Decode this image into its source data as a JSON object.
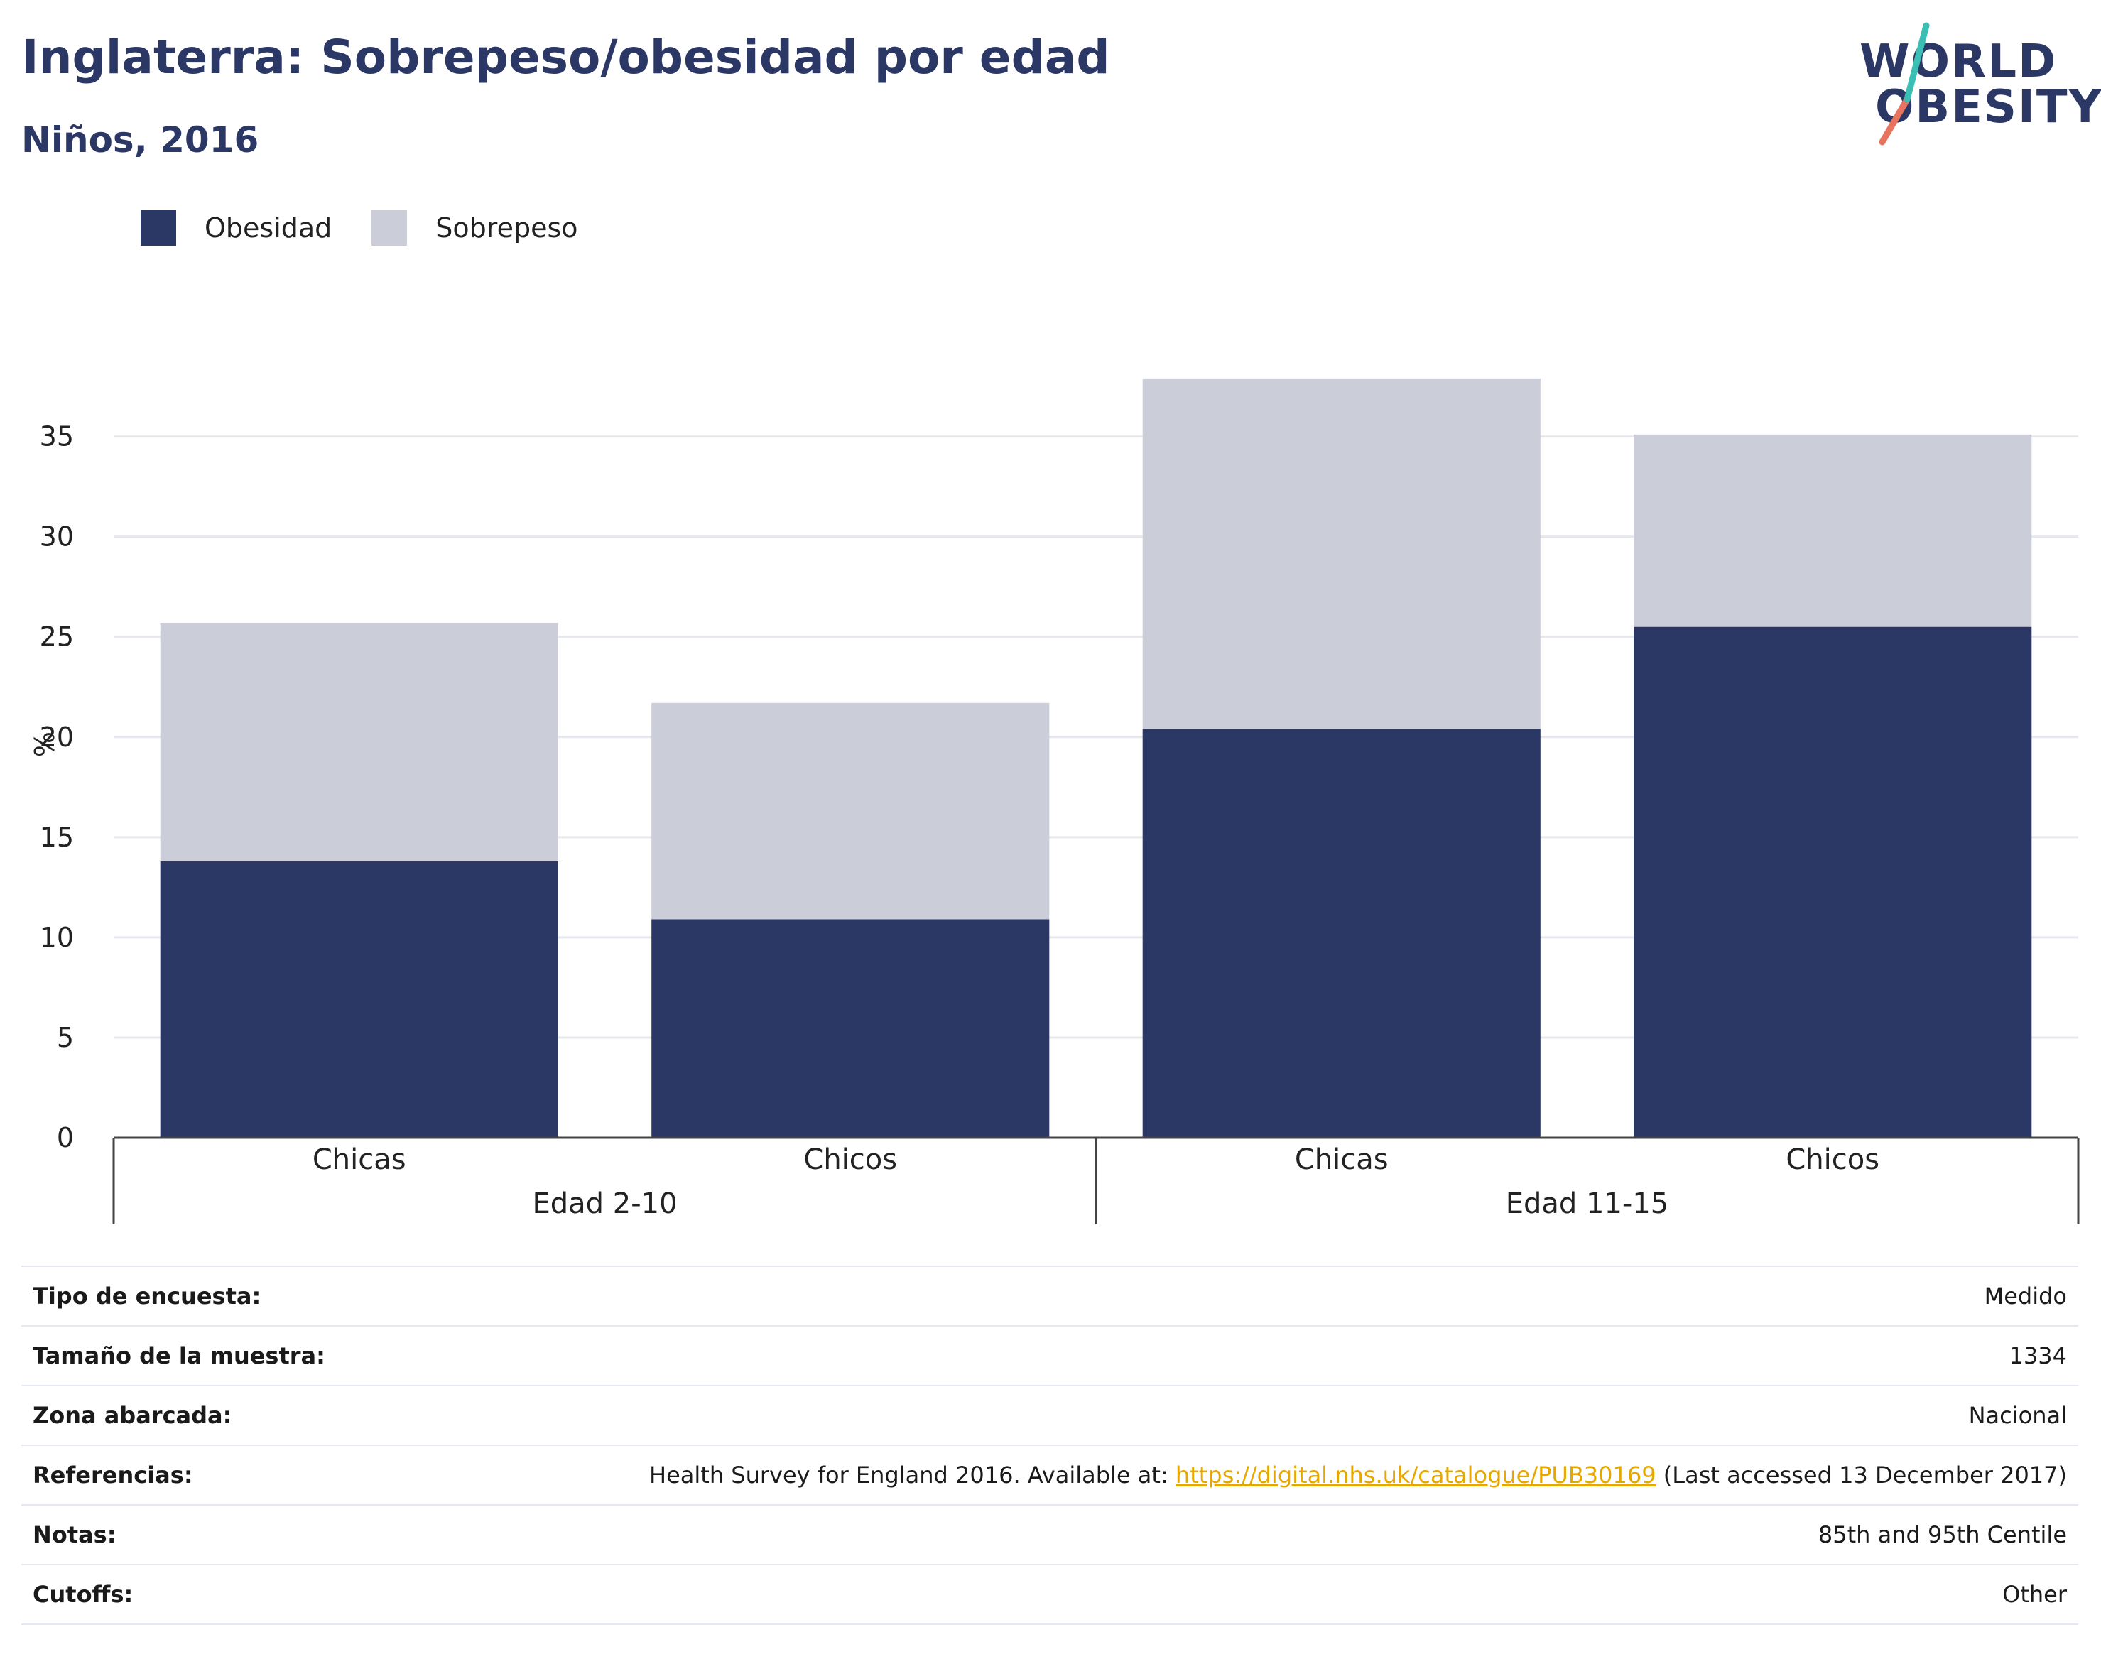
{
  "header": {
    "title": "Inglaterra: Sobrepeso/obesidad por edad",
    "subtitle": "Niños, 2016"
  },
  "logo": {
    "line1": "WORLD",
    "line2": "OBESITY"
  },
  "colors": {
    "obesidad": "#2b3764",
    "sobrepeso": "#cbcdd9",
    "grid": "#e6e8ee",
    "link": "#e6a800",
    "title": "#2b3764"
  },
  "chart_data": {
    "type": "bar",
    "stacked": true,
    "categories": [
      "Chicas",
      "Chicos",
      "Chicas",
      "Chicos"
    ],
    "groups": [
      {
        "label": "Edad 2-10",
        "categories": [
          0,
          1
        ]
      },
      {
        "label": "Edad 11-15",
        "categories": [
          2,
          3
        ]
      }
    ],
    "series": [
      {
        "name": "Obesidad",
        "values": [
          13.8,
          10.9,
          20.4,
          25.5
        ]
      },
      {
        "name": "Sobrepeso",
        "values": [
          11.9,
          10.8,
          17.5,
          9.6
        ]
      }
    ],
    "ylabel": "%",
    "ylim": [
      0,
      38
    ],
    "yticks": [
      0,
      5,
      10,
      15,
      20,
      25,
      30,
      35
    ],
    "grid": true,
    "legend_position": "top-left"
  },
  "table": [
    {
      "key": "Tipo de encuesta:",
      "value": "Medido"
    },
    {
      "key": "Tamaño de la muestra:",
      "value": "1334"
    },
    {
      "key": "Zona abarcada:",
      "value": "Nacional"
    },
    {
      "key": "Referencias:",
      "value_prefix": "Health Survey for England 2016. Available at: ",
      "link": "https://digital.nhs.uk/catalogue/PUB30169",
      "value_suffix": " (Last accessed 13 December 2017)"
    },
    {
      "key": "Notas:",
      "value": "85th and 95th Centile"
    },
    {
      "key": "Cutoffs:",
      "value": "Other"
    }
  ]
}
